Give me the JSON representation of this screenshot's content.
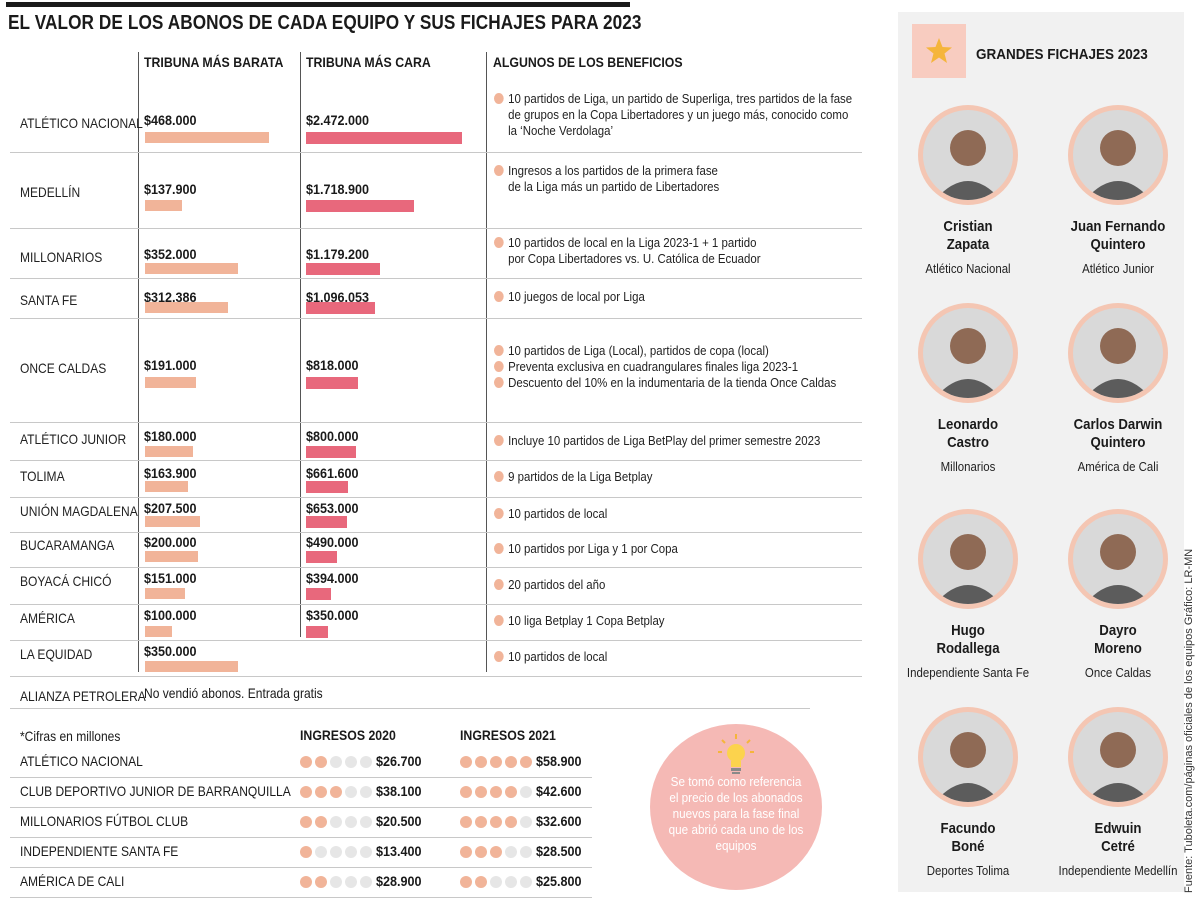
{
  "title": "EL VALOR DE LOS ABONOS DE CADA EQUIPO Y SUS FICHAJES PARA 2023",
  "columns": {
    "cheap": "TRIBUNA MÁS BARATA",
    "expensive": "TRIBUNA MÁS CARA",
    "benefits": "ALGUNOS DE LOS BENEFICIOS"
  },
  "chart_data": {
    "type": "bar",
    "title": "EL VALOR DE LOS ABONOS DE CADA EQUIPO Y SUS FICHAJES PARA 2023",
    "categories": [
      "ATLÉTICO NACIONAL",
      "MEDELLÍN",
      "MILLONARIOS",
      "SANTA FE",
      "ONCE CALDAS",
      "ATLÉTICO JUNIOR",
      "TOLIMA",
      "UNIÓN MAGDALENA",
      "BUCARAMANGA",
      "BOYACÁ CHICÓ",
      "AMÉRICA",
      "LA EQUIDAD",
      "ALIANZA PETROLERA"
    ],
    "series": [
      {
        "name": "TRIBUNA MÁS BARATA",
        "values": [
          468000,
          137900,
          352000,
          312386,
          191000,
          180000,
          163900,
          207500,
          200000,
          151000,
          100000,
          350000,
          null
        ]
      },
      {
        "name": "TRIBUNA MÁS CARA",
        "values": [
          2472000,
          1718900,
          1179200,
          1096053,
          818000,
          800000,
          661600,
          653000,
          490000,
          394000,
          350000,
          null,
          null
        ]
      }
    ],
    "xlabel": "",
    "ylabel": "",
    "ylim": [
      0,
      2472000
    ]
  },
  "teams": [
    {
      "name": "ATLÉTICO NACIONAL",
      "cheap": "$468.000",
      "expensive": "$2.472.000",
      "benefits": [
        "10 partidos de Liga, un partido de Superliga, tres partidos de la fase",
        "de grupos en la Copa Libertadores y un juego más, conocido como",
        "la ‘Noche Verdolaga’"
      ]
    },
    {
      "name": "MEDELLÍN",
      "cheap": "$137.900",
      "expensive": "$1.718.900",
      "benefits": [
        "Ingresos a los partidos de la primera fase",
        "de la Liga más un partido de Libertadores"
      ]
    },
    {
      "name": "MILLONARIOS",
      "cheap": "$352.000",
      "expensive": "$1.179.200",
      "benefits": [
        "10 partidos de local en la Liga 2023-1 + 1 partido",
        "por Copa Libertadores vs. U. Católica de Ecuador"
      ]
    },
    {
      "name": "SANTA FE",
      "cheap": "$312.386",
      "expensive": "$1.096.053",
      "benefits": [
        "10 juegos de local por Liga"
      ]
    },
    {
      "name": "ONCE CALDAS",
      "cheap": "$191.000",
      "expensive": "$818.000",
      "benefits": [
        "10 partidos de Liga (Local), partidos de copa (local)",
        "Preventa exclusiva en cuadrangulares finales liga 2023-1",
        "Descuento del 10% en la indumentaria de la tienda Once Caldas"
      ]
    },
    {
      "name": "ATLÉTICO JUNIOR",
      "cheap": "$180.000",
      "expensive": "$800.000",
      "benefits": [
        "Incluye 10 partidos de Liga BetPlay del primer semestre 2023"
      ]
    },
    {
      "name": "TOLIMA",
      "cheap": "$163.900",
      "expensive": "$661.600",
      "benefits": [
        "9 partidos de la Liga Betplay"
      ]
    },
    {
      "name": "UNIÓN MAGDALENA",
      "cheap": "$207.500",
      "expensive": "$653.000",
      "benefits": [
        "10 partidos de local"
      ]
    },
    {
      "name": "BUCARAMANGA",
      "cheap": "$200.000",
      "expensive": "$490.000",
      "benefits": [
        "10 partidos por Liga y 1 por Copa"
      ]
    },
    {
      "name": "BOYACÁ CHICÓ",
      "cheap": "$151.000",
      "expensive": "$394.000",
      "benefits": [
        "20 partidos del año"
      ]
    },
    {
      "name": "AMÉRICA",
      "cheap": "$100.000",
      "expensive": "$350.000",
      "benefits": [
        "10 liga Betplay 1 Copa Betplay"
      ]
    },
    {
      "name": "LA EQUIDAD",
      "cheap": "$350.000",
      "expensive": "",
      "benefits": [
        "10 partidos de local"
      ]
    },
    {
      "name": "ALIANZA PETROLERA",
      "cheap": "",
      "expensive": "",
      "benefits": []
    }
  ],
  "alianza_note": "No vendió abonos. Entrada gratis",
  "income": {
    "note": "*Cifras en millones",
    "head_2020": "INGRESOS 2020",
    "head_2021": "INGRESOS 2021",
    "rows": [
      {
        "name": "ATLÉTICO NACIONAL",
        "v2020": "$26.700",
        "d2020": 2,
        "v2021": "$58.900",
        "d2021": 5
      },
      {
        "name": "CLUB DEPORTIVO JUNIOR DE BARRANQUILLA",
        "v2020": "$38.100",
        "d2020": 3,
        "v2021": "$42.600",
        "d2021": 4
      },
      {
        "name": "MILLONARIOS FÚTBOL CLUB",
        "v2020": "$20.500",
        "d2020": 2,
        "v2021": "$32.600",
        "d2021": 4
      },
      {
        "name": "INDEPENDIENTE SANTA FE",
        "v2020": "$13.400",
        "d2020": 1,
        "v2021": "$28.500",
        "d2021": 3
      },
      {
        "name": "AMÉRICA DE CALI",
        "v2020": "$28.900",
        "d2020": 2,
        "v2021": "$25.800",
        "d2021": 2
      }
    ]
  },
  "note_text": "Se tomó como referencia el precio de los abonados nuevos para la fase final que abrió cada uno de los equipos",
  "signings": {
    "title": "GRANDES FICHAJES 2023",
    "players": [
      {
        "first": "Cristian",
        "last": "Zapata",
        "team": "Atlético Nacional"
      },
      {
        "first": "Juan Fernando",
        "last": "Quintero",
        "team": "Atlético Junior"
      },
      {
        "first": "Leonardo",
        "last": "Castro",
        "team": "Millonarios"
      },
      {
        "first": "Carlos Darwin",
        "last": "Quintero",
        "team": "América de Cali"
      },
      {
        "first": "Hugo",
        "last": "Rodallega",
        "team": "Independiente Santa Fe"
      },
      {
        "first": "Dayro",
        "last": "Moreno",
        "team": "Once Caldas"
      },
      {
        "first": "Facundo",
        "last": "Boné",
        "team": "Deportes Tolima"
      },
      {
        "first": "Edwuin",
        "last": "Cetré",
        "team": "Independiente Medellín"
      }
    ]
  },
  "source": "Fuente: Tuboleta.com/páginas oficiales de los equipos Gráfico: LR-MN",
  "colors": {
    "cheap_bar": "#f1b499",
    "expensive_bar": "#e8687c",
    "avatar_ring": "#f4c6b3",
    "star": "#f5b53b"
  }
}
